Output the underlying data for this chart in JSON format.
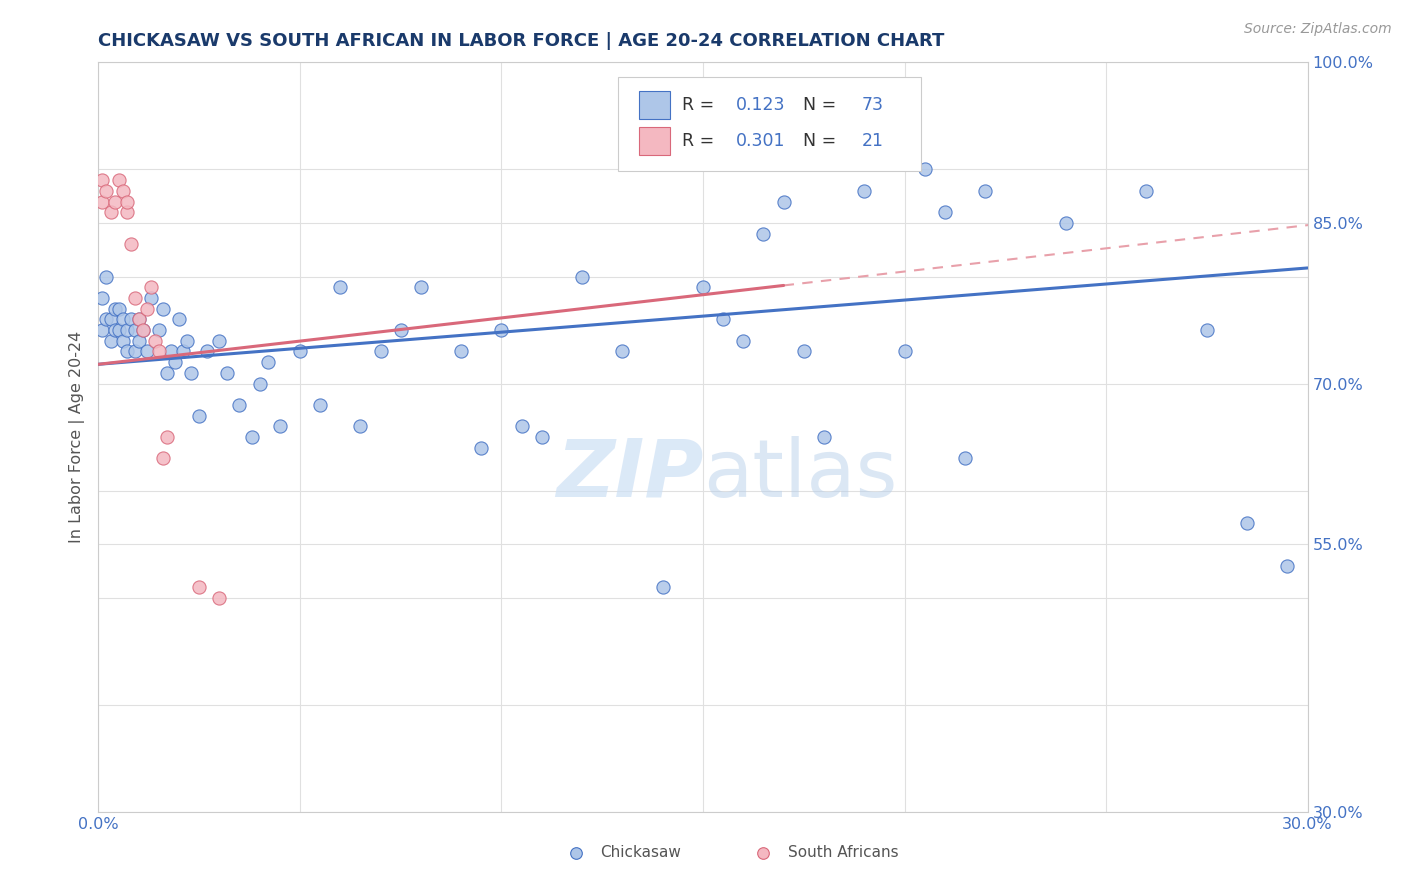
{
  "title": "CHICKASAW VS SOUTH AFRICAN IN LABOR FORCE | AGE 20-24 CORRELATION CHART",
  "source_text": "Source: ZipAtlas.com",
  "ylabel": "In Labor Force | Age 20-24",
  "xlim": [
    0.0,
    0.3
  ],
  "ylim": [
    0.3,
    1.0
  ],
  "chickasaw_color": "#aec6e8",
  "sa_color": "#f4b8c1",
  "chickasaw_line_color": "#4472c4",
  "sa_line_color": "#d9687a",
  "sa_line_dashed_color": "#e8a0aa",
  "R_chickasaw": 0.123,
  "N_chickasaw": 73,
  "R_sa": 0.301,
  "N_sa": 21,
  "title_color": "#1a3a6b",
  "label_color": "#4472c4",
  "tick_color": "#555555",
  "chickasaw_x": [
    0.001,
    0.001,
    0.002,
    0.002,
    0.003,
    0.003,
    0.004,
    0.004,
    0.005,
    0.005,
    0.006,
    0.006,
    0.007,
    0.007,
    0.008,
    0.009,
    0.009,
    0.01,
    0.01,
    0.011,
    0.012,
    0.013,
    0.015,
    0.016,
    0.017,
    0.018,
    0.019,
    0.02,
    0.021,
    0.022,
    0.023,
    0.025,
    0.027,
    0.03,
    0.032,
    0.035,
    0.038,
    0.04,
    0.042,
    0.045,
    0.05,
    0.055,
    0.06,
    0.065,
    0.07,
    0.075,
    0.08,
    0.09,
    0.095,
    0.1,
    0.105,
    0.11,
    0.12,
    0.13,
    0.14,
    0.15,
    0.155,
    0.16,
    0.165,
    0.17,
    0.175,
    0.18,
    0.19,
    0.2,
    0.205,
    0.21,
    0.215,
    0.22,
    0.24,
    0.26,
    0.275,
    0.285,
    0.295
  ],
  "chickasaw_y": [
    0.75,
    0.78,
    0.76,
    0.8,
    0.74,
    0.76,
    0.75,
    0.77,
    0.75,
    0.77,
    0.76,
    0.74,
    0.75,
    0.73,
    0.76,
    0.75,
    0.73,
    0.76,
    0.74,
    0.75,
    0.73,
    0.78,
    0.75,
    0.77,
    0.71,
    0.73,
    0.72,
    0.76,
    0.73,
    0.74,
    0.71,
    0.67,
    0.73,
    0.74,
    0.71,
    0.68,
    0.65,
    0.7,
    0.72,
    0.66,
    0.73,
    0.68,
    0.79,
    0.66,
    0.73,
    0.75,
    0.79,
    0.73,
    0.64,
    0.75,
    0.66,
    0.65,
    0.8,
    0.73,
    0.51,
    0.79,
    0.76,
    0.74,
    0.84,
    0.87,
    0.73,
    0.65,
    0.88,
    0.73,
    0.9,
    0.86,
    0.63,
    0.88,
    0.85,
    0.88,
    0.75,
    0.57,
    0.53
  ],
  "sa_x": [
    0.001,
    0.001,
    0.002,
    0.003,
    0.004,
    0.005,
    0.006,
    0.007,
    0.007,
    0.008,
    0.009,
    0.01,
    0.011,
    0.012,
    0.013,
    0.014,
    0.015,
    0.016,
    0.017,
    0.025,
    0.03
  ],
  "sa_y": [
    0.87,
    0.89,
    0.88,
    0.86,
    0.87,
    0.89,
    0.88,
    0.86,
    0.87,
    0.83,
    0.78,
    0.76,
    0.75,
    0.77,
    0.79,
    0.74,
    0.73,
    0.63,
    0.65,
    0.51,
    0.5
  ],
  "blue_trend_x0": 0.0,
  "blue_trend_y0": 0.718,
  "blue_trend_x1": 0.3,
  "blue_trend_y1": 0.808,
  "pink_trend_x0": 0.0,
  "pink_trend_y0": 0.718,
  "pink_trend_x1": 0.3,
  "pink_trend_y1": 0.848
}
